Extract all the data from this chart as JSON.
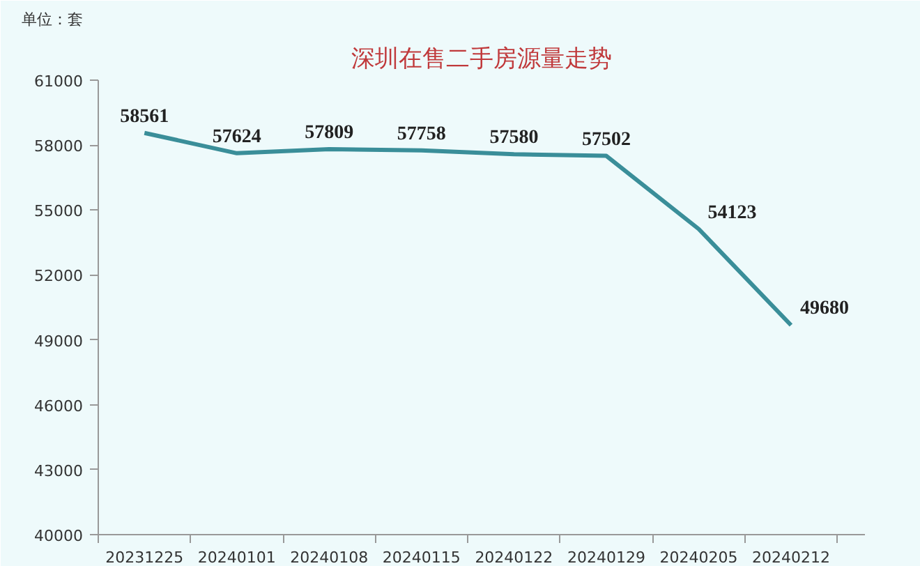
{
  "chart_data": {
    "type": "line",
    "title": "深圳在售二手房源量走势",
    "ylabel": "单位：套",
    "categories": [
      "20231225",
      "20240101",
      "20240108",
      "20240115",
      "20240122",
      "20240129",
      "20240205",
      "20240212"
    ],
    "series": [
      {
        "color": "#3a8e99",
        "values": [
          58561,
          57624,
          57809,
          57758,
          57580,
          57502,
          54123,
          49680
        ]
      }
    ],
    "ylim": [
      40000,
      61000
    ],
    "yticks": [
      40000,
      43000,
      46000,
      49000,
      52000,
      55000,
      58000,
      61000
    ],
    "data_labels": true,
    "marker": "none",
    "line_style": "solid"
  }
}
